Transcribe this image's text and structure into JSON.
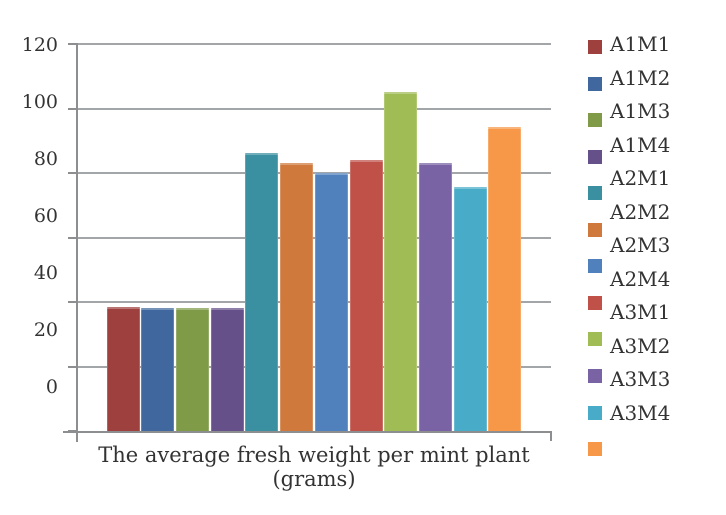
{
  "chart_data": {
    "type": "bar",
    "title": "",
    "xlabel": "The average fresh weight per mint plant (grams)",
    "ylabel": "",
    "categories": [
      "The average fresh weight per mint plant (grams)"
    ],
    "category_label_lines": [
      "The average fresh weight per mint plant",
      "(grams)"
    ],
    "series": [
      {
        "name": "A1M1",
        "value": 38.5,
        "color": "#9E403D"
      },
      {
        "name": "A1M2",
        "value": 38,
        "color": "#40689E"
      },
      {
        "name": "A1M3",
        "value": 38,
        "color": "#7F9B48"
      },
      {
        "name": "A1M4",
        "value": 38,
        "color": "#655089"
      },
      {
        "name": "A2M1",
        "value": 86,
        "color": "#3A8FA1"
      },
      {
        "name": "A2M2",
        "value": 83,
        "color": "#D0793C"
      },
      {
        "name": "A2M3",
        "value": 80,
        "color": "#5081BC"
      },
      {
        "name": "A2M4",
        "value": 84,
        "color": "#C05149"
      },
      {
        "name": "A3M1",
        "value": 105,
        "color": "#A0BC55"
      },
      {
        "name": "A3M2",
        "value": 83,
        "color": "#7963A5"
      },
      {
        "name": "A3M3",
        "value": 75.5,
        "color": "#48ACC8"
      },
      {
        "name": "A3M4",
        "value": 94,
        "color": "#F79848"
      }
    ],
    "ylim": [
      0,
      120
    ],
    "yticks": [
      120,
      100,
      80,
      60,
      40,
      20,
      0
    ],
    "grid": true,
    "legend_position": "right"
  },
  "styles": {
    "background": "#FFFFFF",
    "gridline_color": "#A3A6A9",
    "axis_color": "#8C8E90",
    "text_color": "#333333"
  }
}
